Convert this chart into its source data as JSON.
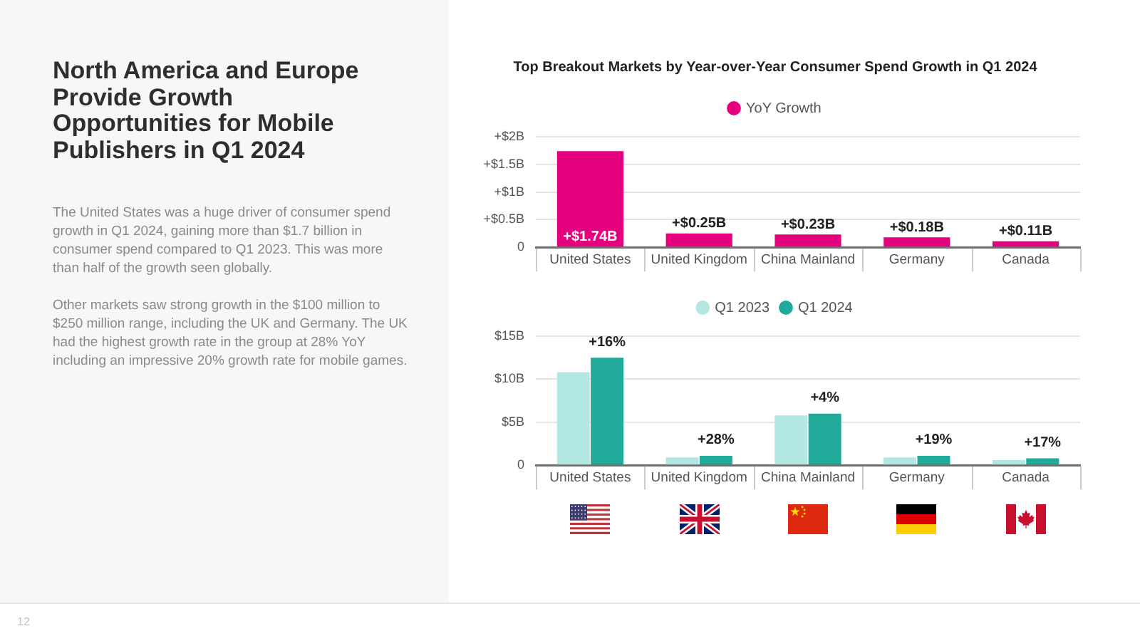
{
  "chart_data": [
    {
      "type": "other",
      "title": "North America and Europe Provide Growth Opportunities for Mobile Publishers in Q1 2024",
      "annotations": [
        "The United States was a huge driver of consumer spend growth in Q1 2024, gaining more than $1.7 billion in consumer spend compared to Q1 2023. This was more than half of the growth seen globally.",
        "Other markets saw strong growth in the $100 million to $250 million range, including the UK and Germany. The UK had the highest growth rate in the group at 28% YoY including an impressive 20% growth rate for mobile games.",
        "12"
      ]
    },
    {
      "type": "bar",
      "title": "Top Breakout Markets by Year-over-Year Consumer Spend Growth in Q1 2024",
      "categories": [
        "United States",
        "United Kingdom",
        "China Mainland",
        "Germany",
        "Canada"
      ],
      "series": [
        {
          "name": "YoY Growth",
          "color": "#e5007e",
          "values": [
            1.74,
            0.25,
            0.23,
            0.18,
            0.11
          ],
          "value_labels": [
            "+$1.74B",
            "+$0.25B",
            "+$0.23B",
            "+$0.18B",
            "+$0.11B"
          ]
        }
      ],
      "ylim": [
        0,
        2
      ],
      "yticks": [
        0,
        {
          "value": 0.5,
          "label": "+$0.5B"
        },
        {
          "value": 1,
          "label": "+$1B"
        },
        {
          "value": 1.5,
          "label": "+$1.5B"
        },
        {
          "value": 2,
          "label": "+$2B"
        }
      ],
      "grid": "y",
      "legend": "top"
    },
    {
      "type": "bar",
      "categories": [
        "United States",
        "United Kingdom",
        "China Mainland",
        "Germany",
        "Canada"
      ],
      "series": [
        {
          "name": "Q1 2023",
          "color": "#b2e7e3",
          "values": [
            10.8,
            0.9,
            5.8,
            0.9,
            0.6
          ]
        },
        {
          "name": "Q1 2024",
          "color": "#1faa99",
          "values": [
            12.5,
            1.1,
            6.0,
            1.1,
            0.8
          ]
        }
      ],
      "ylim": [
        0,
        15
      ],
      "yticks": [
        0,
        {
          "value": 5,
          "label": "$5B"
        },
        {
          "value": 10,
          "label": "$10B"
        },
        {
          "value": 15,
          "label": "$15B"
        }
      ],
      "grid": "y",
      "legend": "top",
      "annotations": [
        {
          "text": "+16%",
          "x": "United States",
          "y": 12.5
        },
        {
          "text": "+28%",
          "x": "United Kingdom",
          "y": 1.1
        },
        {
          "text": "+4%",
          "x": "China Mainland",
          "y": 6.0
        },
        {
          "text": "+19%",
          "x": "Germany",
          "y": 1.1
        },
        {
          "text": "+17%",
          "x": "Canada",
          "y": 0.8
        }
      ]
    }
  ]
}
